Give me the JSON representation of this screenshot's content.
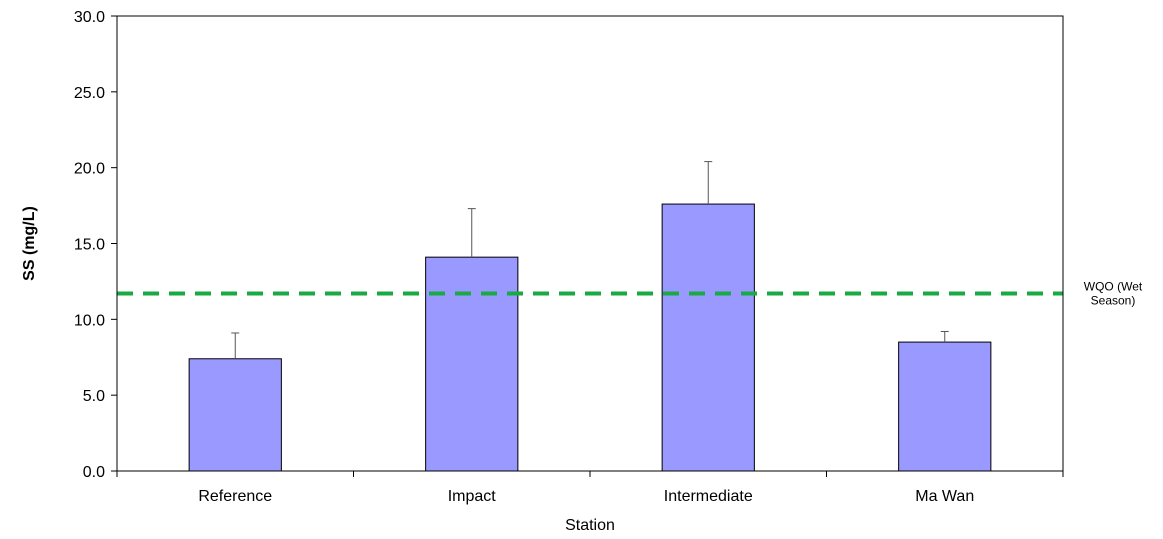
{
  "chart_data": {
    "type": "bar",
    "title": "",
    "xlabel": "Station",
    "ylabel": "SS (mg/L)",
    "ylim": [
      0,
      30
    ],
    "yticks": [
      0,
      5,
      10,
      15,
      20,
      25,
      30
    ],
    "ytick_labels": [
      "0.0",
      "5.0",
      "10.0",
      "15.0",
      "20.0",
      "25.0",
      "30.0"
    ],
    "categories": [
      "Reference",
      "Impact",
      "Intermediate",
      "Ma Wan"
    ],
    "values": [
      7.4,
      14.1,
      17.6,
      8.5
    ],
    "error_upper": [
      9.1,
      17.3,
      20.4,
      9.2
    ],
    "bar_color": "#9999ff",
    "bar_edge_color": "#000000",
    "reference_line": {
      "value": 11.7,
      "label_lines": [
        "WQO (Wet",
        "Season)"
      ],
      "color": "#1aaa44",
      "style": "dashed"
    },
    "grid": false,
    "legend": "none"
  }
}
